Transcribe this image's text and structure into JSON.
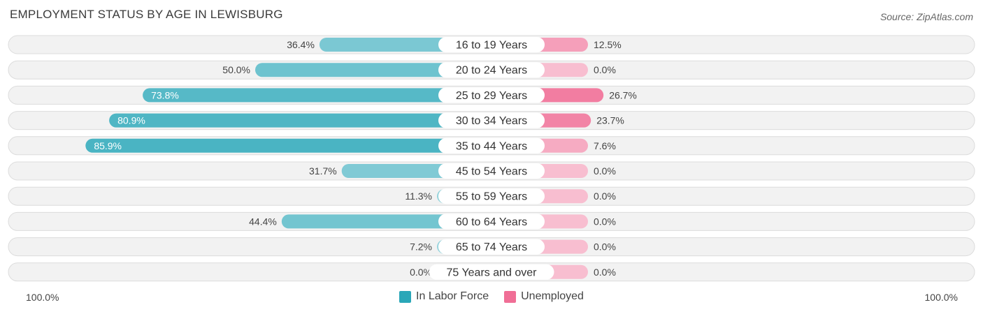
{
  "title": "EMPLOYMENT STATUS BY AGE IN LEWISBURG",
  "source": "Source: ZipAtlas.com",
  "axis": {
    "left_label": "100.0%",
    "right_label": "100.0%"
  },
  "legend": [
    {
      "label": "In Labor Force",
      "color": "#2aa7b8"
    },
    {
      "label": "Unemployed",
      "color": "#f06e96"
    }
  ],
  "chart_data": {
    "type": "bar",
    "orientation": "horizontal-diverging",
    "title": "EMPLOYMENT STATUS BY AGE IN LEWISBURG",
    "categories": [
      "16 to 19 Years",
      "20 to 24 Years",
      "25 to 29 Years",
      "30 to 34 Years",
      "35 to 44 Years",
      "45 to 54 Years",
      "55 to 59 Years",
      "60 to 64 Years",
      "65 to 74 Years",
      "75 Years and over"
    ],
    "series": [
      {
        "name": "In Labor Force",
        "values": [
          36.4,
          50.0,
          73.8,
          80.9,
          85.9,
          31.7,
          11.3,
          44.4,
          7.2,
          0.0
        ],
        "labels": [
          "36.4%",
          "50.0%",
          "73.8%",
          "80.9%",
          "85.9%",
          "31.7%",
          "11.3%",
          "44.4%",
          "7.2%",
          "0.0%"
        ]
      },
      {
        "name": "Unemployed",
        "values": [
          12.5,
          0.0,
          26.7,
          23.7,
          7.6,
          0.0,
          0.0,
          0.0,
          0.0,
          0.0
        ],
        "labels": [
          "12.5%",
          "0.0%",
          "26.7%",
          "23.7%",
          "7.6%",
          "0.0%",
          "0.0%",
          "0.0%",
          "0.0%",
          "0.0%"
        ]
      }
    ],
    "xlim": [
      -100,
      100
    ],
    "xlabel": "",
    "ylabel": "",
    "legend_position": "bottom-center"
  }
}
